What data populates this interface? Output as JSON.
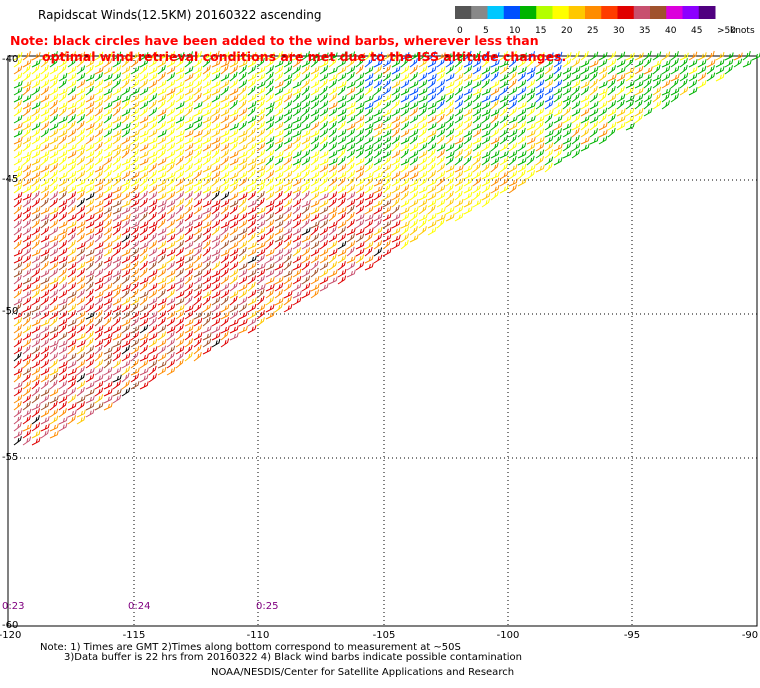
{
  "title": "Rapidscat Winds(12.5KM) 20160322 ascending",
  "note": {
    "line1": "Note: black circles have been added to the wind barbs, wherever less than",
    "line2": "optimal wind retrieval conditions are met due to the ISS altitude changes."
  },
  "legend": {
    "unit": "knots",
    "ticks": [
      "0",
      "5",
      "10",
      "15",
      "20",
      "25",
      "30",
      "35",
      "40",
      "45",
      ">50"
    ],
    "colors": [
      "#555555",
      "#888888",
      "#00c8ff",
      "#0050ff",
      "#00b400",
      "#b4ff00",
      "#ffff00",
      "#ffc800",
      "#ff8c00",
      "#ff3c00",
      "#e00000",
      "#c8506e",
      "#a0522d",
      "#dc00dc",
      "#8c00ff",
      "#500080"
    ]
  },
  "axes": {
    "lon_ticks": [
      "-120",
      "-115",
      "-110",
      "-105",
      "-100",
      "-95",
      "-90"
    ],
    "lat_ticks": [
      "-40",
      "-45",
      "-50",
      "-55",
      "-60"
    ]
  },
  "time_labels": [
    "0:23",
    "0:24",
    "0:25"
  ],
  "map_data": {
    "projection": "cylindrical",
    "lon_range": [
      -120,
      -90
    ],
    "lat_range": [
      -60,
      -40
    ],
    "swath": "Rapidscat ascending pass, wind barbs colored by speed (knots)",
    "contamination_flag_color": "#000000"
  },
  "footer": {
    "note1": "Note: 1) Times are GMT 2)Times along bottom correspond to measurement at ~50S",
    "note2": "3)Data buffer is 22 hrs from 20160322 4) Black wind barbs indicate possible contamination",
    "credit": "NOAA/NESDIS/Center for Satellite Applications and Research"
  }
}
